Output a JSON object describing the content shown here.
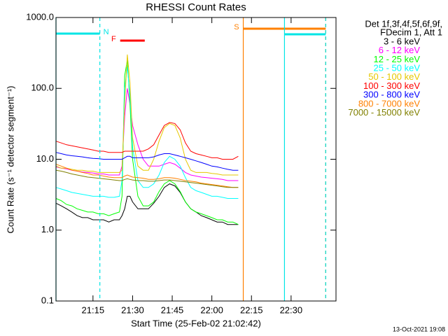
{
  "chart_data": {
    "type": "line",
    "title": "RHESSI Count Rates",
    "xlabel": "Start Time (25-Feb-02 21:02:42)",
    "ylabel": "Count Rate (s⁻¹ detector segment⁻¹)",
    "legend_header": [
      "Det 1f,3f,4f,5f,6f,9f,",
      "FDecim 1, Att 1"
    ],
    "footer": "13-Oct-2021 19:08",
    "log_y": true,
    "xlim": [
      1,
      107
    ],
    "ylim": [
      0.1,
      1000
    ],
    "xticks": [
      {
        "value": 15,
        "label": "21:15"
      },
      {
        "value": 30,
        "label": "21:30"
      },
      {
        "value": 45,
        "label": "21:45"
      },
      {
        "value": 60,
        "label": "22:00"
      },
      {
        "value": 75,
        "label": "22:15"
      },
      {
        "value": 90,
        "label": "22:30"
      }
    ],
    "yticks": [
      0.1,
      {
        "value": 1,
        "label": "1.0"
      },
      {
        "value": 10,
        "label": "10.0"
      },
      {
        "value": 100,
        "label": "100.0"
      },
      {
        "value": 1000,
        "label": "1000.0"
      }
    ],
    "x": [
      1,
      3,
      5,
      7,
      9,
      11,
      13,
      15,
      17,
      19,
      21,
      23,
      25,
      26,
      27,
      28,
      29,
      30,
      32,
      34,
      36,
      38,
      40,
      42,
      44,
      46,
      48,
      50,
      52,
      54,
      56,
      58,
      60,
      62,
      64,
      66,
      68,
      70
    ],
    "series": [
      {
        "name": "3 - 6 keV",
        "color": "#000000",
        "values": [
          2.4,
          2.2,
          2,
          1.8,
          1.6,
          1.5,
          1.5,
          1.4,
          1.4,
          1.4,
          1.3,
          1.4,
          1.4,
          1.6,
          2,
          3,
          3,
          2.5,
          2,
          2,
          2,
          2.4,
          3,
          4,
          4.5,
          4.2,
          3.4,
          2.5,
          2,
          1.8,
          1.6,
          1.5,
          1.4,
          1.3,
          1.3,
          1.2,
          1.2,
          1.2
        ]
      },
      {
        "name": "6 - 12 keV",
        "color": "#ff00ff",
        "values": [
          7.8,
          7.5,
          7.3,
          7,
          6.8,
          6.6,
          6.5,
          6.4,
          6.2,
          6.2,
          6,
          6,
          6,
          8,
          40,
          100,
          60,
          30,
          16,
          10,
          8,
          8,
          8,
          8.5,
          9,
          8.5,
          7.5,
          6.5,
          6,
          5.8,
          5.6,
          5.5,
          5.4,
          5.3,
          5.2,
          5,
          5,
          5
        ]
      },
      {
        "name": "12 - 25 keV",
        "color": "#00ff00",
        "values": [
          2.8,
          2.6,
          2.3,
          2.2,
          2,
          1.9,
          1.8,
          1.8,
          1.7,
          1.7,
          1.6,
          1.7,
          1.8,
          3,
          150,
          250,
          60,
          10,
          3,
          2.2,
          2.2,
          2.5,
          3.5,
          4.5,
          5,
          4.5,
          3.5,
          2.5,
          2,
          1.8,
          1.7,
          1.6,
          1.5,
          1.4,
          1.4,
          1.3,
          1.3,
          1.2
        ]
      },
      {
        "name": "25 - 50 keV",
        "color": "#00ffff",
        "values": [
          4,
          3.8,
          3.6,
          3.4,
          3.3,
          3.2,
          3.1,
          3,
          3,
          3,
          2.9,
          2.9,
          3,
          5,
          100,
          200,
          80,
          15,
          5,
          4,
          4,
          4.5,
          6,
          9,
          11,
          10,
          8,
          5.5,
          4,
          3.6,
          3.4,
          3.2,
          3,
          3,
          2.9,
          2.8,
          2.8,
          2.8
        ]
      },
      {
        "name": "50 - 100 keV",
        "color": "#e6c800",
        "values": [
          8,
          7.5,
          7.5,
          7.2,
          7,
          7,
          6.8,
          6.8,
          6.5,
          6.5,
          6.5,
          6.5,
          6.5,
          7,
          60,
          300,
          120,
          20,
          8,
          7,
          7,
          10,
          18,
          28,
          32,
          30,
          20,
          10,
          7,
          6.5,
          6.5,
          6.5,
          6.3,
          6.2,
          6,
          6,
          6,
          6
        ]
      },
      {
        "name": "100 - 300 keV",
        "color": "#ff0000",
        "values": [
          18,
          17,
          16,
          15.5,
          15,
          14.5,
          14,
          13.5,
          13,
          13,
          12.5,
          12.5,
          12.5,
          12.5,
          13,
          13,
          13,
          13,
          13,
          13,
          14,
          16,
          22,
          30,
          33,
          32,
          26,
          17,
          13,
          12,
          11.5,
          11,
          10.5,
          10.5,
          10,
          10,
          10,
          11
        ]
      },
      {
        "name": "300 - 800 keV",
        "color": "#0000ff",
        "values": [
          12.5,
          12,
          11.5,
          11.2,
          11,
          10.8,
          10.5,
          10.3,
          10.2,
          10,
          10,
          10,
          10,
          10,
          10.5,
          11,
          11,
          10.5,
          10.5,
          10.5,
          10.5,
          10.8,
          11.5,
          12,
          12,
          11.5,
          11,
          10.5,
          10,
          9.5,
          9,
          8.5,
          8,
          7.8,
          7.5,
          7.2,
          7,
          7
        ]
      },
      {
        "name": "800 - 7000 keV",
        "color": "#ff8000",
        "values": [
          8.5,
          8,
          7.5,
          7,
          6.8,
          6.5,
          6.3,
          6,
          6,
          5.8,
          5.6,
          5.5,
          5.5,
          5.5,
          5.8,
          6,
          5.8,
          5.6,
          5.5,
          5.4,
          5.2,
          5.2,
          5.3,
          5.5,
          5.5,
          5.4,
          5.2,
          5,
          4.9,
          4.8,
          4.6,
          4.5,
          4.4,
          4.3,
          4.2,
          4.1,
          4,
          4
        ]
      },
      {
        "name": "7000 - 15000 keV",
        "color": "#808000",
        "values": [
          7,
          6.8,
          6.5,
          6.2,
          6,
          5.8,
          5.6,
          5.5,
          5.4,
          5.3,
          5.2,
          5.1,
          5,
          5,
          5.2,
          5.3,
          5.2,
          5.1,
          5,
          5,
          4.9,
          4.9,
          5,
          5.1,
          5.1,
          5,
          4.9,
          4.8,
          4.7,
          4.6,
          4.5,
          4.4,
          4.3,
          4.2,
          4.1,
          4,
          4,
          4
        ]
      }
    ],
    "intervals": [
      {
        "text": "N",
        "color": "#00e5e5",
        "start": 1.0,
        "end": 17.6,
        "boundaries": true
      },
      {
        "text": "F",
        "color": "#ff0000",
        "start": 25.3,
        "end": 34.6,
        "boundaries": false
      },
      {
        "text": "S",
        "color": "#ff8000",
        "start": 71.9,
        "end": 103.1,
        "boundaries": true
      },
      {
        "color": "#00e5e5",
        "start": 87.5,
        "end": 103.1,
        "boundaries": true
      }
    ]
  }
}
